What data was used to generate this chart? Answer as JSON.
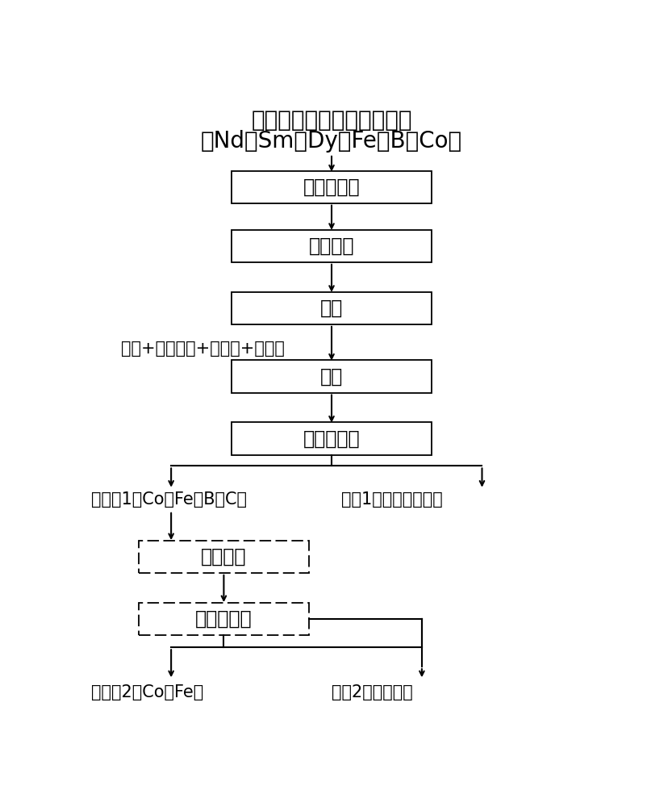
{
  "title_line1": "钕铁硼或钐钴磁性材料废料",
  "title_line2": "（Nd、Sm、Dy、Fe、B、Co）",
  "bg_color": "#ffffff",
  "box_color": "#ffffff",
  "box_edge_color": "#000000",
  "text_color": "#000000",
  "arrow_color": "#000000",
  "label_metal1": "金属相1（Co、Fe、B、C）",
  "label_slag1": "渣相1（稀土氧化物）",
  "label_metal2": "金属相2（Co、Fe）",
  "label_slag2": "渣相2（氧化硼）",
  "label_additive": "碳粉+物料粉体+添加剂+粘结剂",
  "box1": "干燥、粉碎",
  "box2": "氧化焙烧",
  "box3": "粉碎",
  "box4": "造球",
  "box5": "选择性还原",
  "box6": "氧化焙烧",
  "box7": "选择性还原",
  "font_size_title": 20,
  "font_size_box": 17,
  "font_size_label": 15,
  "font_size_additive": 15
}
